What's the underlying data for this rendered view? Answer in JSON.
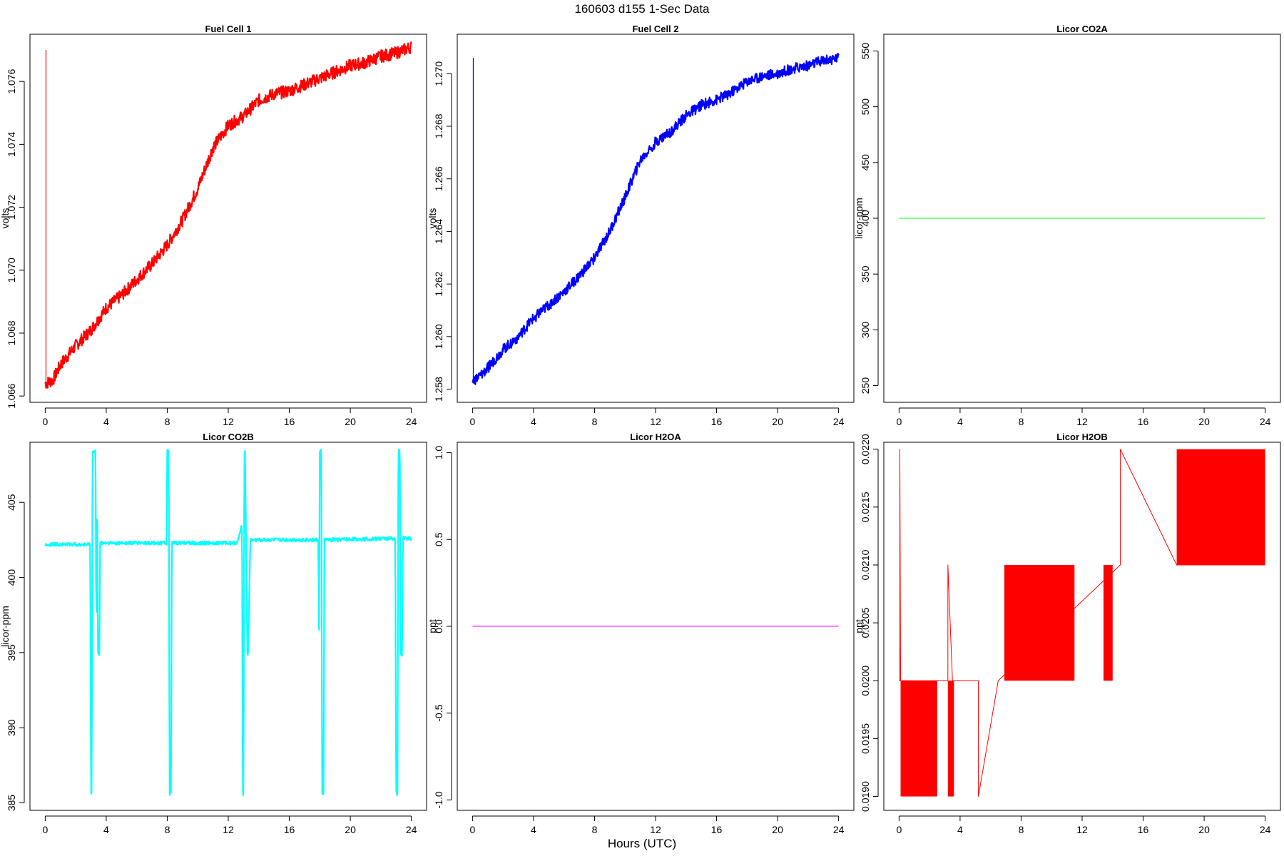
{
  "figure": {
    "title": "160603   d155   1-Sec Data",
    "xlabel": "Hours (UTC)"
  },
  "chart_data": [
    {
      "type": "line",
      "title": "Fuel Cell 1",
      "ylabel": "volts",
      "color": "#ff0000",
      "xlim": [
        -1,
        25
      ],
      "ylim": [
        1.0658,
        1.0775
      ],
      "xticks": [
        0,
        4,
        8,
        12,
        16,
        20,
        24
      ],
      "yticks": [
        1.066,
        1.068,
        1.07,
        1.072,
        1.074,
        1.076
      ],
      "ytick_labels": [
        "1.066",
        "1.068",
        "1.070",
        "1.072",
        "1.074",
        "1.076"
      ],
      "spike": {
        "x": 0.05,
        "from": 1.0664,
        "to": 1.077
      },
      "noise": 0.0002,
      "x": [
        0,
        0.5,
        1,
        2,
        3,
        4,
        5,
        6,
        7,
        8,
        9,
        10,
        11,
        12,
        13,
        14,
        15,
        16,
        17,
        18,
        19,
        20,
        21,
        22,
        23,
        24
      ],
      "y": [
        1.0664,
        1.0665,
        1.067,
        1.0676,
        1.0681,
        1.0688,
        1.0692,
        1.0697,
        1.0702,
        1.0708,
        1.0716,
        1.0726,
        1.0739,
        1.0746,
        1.0749,
        1.0754,
        1.0756,
        1.0757,
        1.0759,
        1.0761,
        1.0763,
        1.0765,
        1.0766,
        1.0768,
        1.0769,
        1.0771
      ]
    },
    {
      "type": "line",
      "title": "Fuel Cell 2",
      "ylabel": "volts",
      "color": "#0000ff",
      "xlim": [
        -1,
        25
      ],
      "ylim": [
        1.2575,
        1.2715
      ],
      "xticks": [
        0,
        4,
        8,
        12,
        16,
        20,
        24
      ],
      "yticks": [
        1.258,
        1.26,
        1.262,
        1.264,
        1.266,
        1.268,
        1.27
      ],
      "ytick_labels": [
        "1.258",
        "1.260",
        "1.262",
        "1.264",
        "1.266",
        "1.268",
        "1.270"
      ],
      "spike": {
        "x": 0.05,
        "from": 1.2583,
        "to": 1.2706
      },
      "noise": 0.0002,
      "x": [
        0,
        0.5,
        1,
        2,
        3,
        4,
        5,
        6,
        7,
        8,
        9,
        10,
        11,
        12,
        13,
        14,
        15,
        16,
        17,
        18,
        19,
        20,
        21,
        22,
        23,
        24
      ],
      "y": [
        1.2583,
        1.2585,
        1.2588,
        1.2595,
        1.26,
        1.2607,
        1.2612,
        1.2617,
        1.2623,
        1.263,
        1.264,
        1.2653,
        1.2667,
        1.2674,
        1.2678,
        1.2684,
        1.2688,
        1.269,
        1.2693,
        1.2697,
        1.2699,
        1.27,
        1.2702,
        1.2703,
        1.2705,
        1.2706
      ]
    },
    {
      "type": "line",
      "title": "Licor CO2A",
      "ylabel": "licor-ppm",
      "color": "#00ff00",
      "xlim": [
        -1,
        25
      ],
      "ylim": [
        235,
        565
      ],
      "xticks": [
        0,
        4,
        8,
        12,
        16,
        20,
        24
      ],
      "yticks": [
        250,
        300,
        350,
        400,
        450,
        500,
        550
      ],
      "ytick_labels": [
        "250",
        "300",
        "350",
        "400",
        "450",
        "500",
        "550"
      ],
      "noise": 0,
      "x": [
        0,
        24
      ],
      "y": [
        400,
        400
      ]
    },
    {
      "type": "line",
      "title": "Licor CO2B",
      "ylabel": "licor-ppm",
      "color": "#00ffff",
      "xlim": [
        -1,
        25
      ],
      "ylim": [
        384.5,
        409
      ],
      "xticks": [
        0,
        4,
        8,
        12,
        16,
        20,
        24
      ],
      "yticks": [
        385,
        390,
        395,
        400,
        405
      ],
      "ytick_labels": [
        "385",
        "390",
        "395",
        "400",
        "405"
      ],
      "noise": 0.12,
      "x": [
        0,
        2.95,
        3.0,
        3.05,
        3.1,
        3.15,
        3.3,
        3.35,
        3.4,
        3.45,
        3.55,
        3.6,
        3.7,
        7.95,
        8.0,
        8.1,
        8.15,
        8.25,
        8.3,
        12.6,
        12.9,
        12.95,
        13.0,
        13.05,
        13.1,
        13.25,
        13.3,
        13.45,
        13.5,
        17.9,
        17.95,
        18.0,
        18.1,
        18.15,
        18.25,
        18.3,
        22.95,
        23.0,
        23.1,
        23.15,
        23.25,
        23.3,
        23.4,
        23.45,
        23.6,
        24
      ],
      "y": [
        402.2,
        402.2,
        385.6,
        385.6,
        408.4,
        408.4,
        408.4,
        395.5,
        406.8,
        394.9,
        394.9,
        402.3,
        402.3,
        402.3,
        408.4,
        408.4,
        385.6,
        385.6,
        402.3,
        402.3,
        403.5,
        385.6,
        385.6,
        408.4,
        408.4,
        394.9,
        394.9,
        402.5,
        402.5,
        402.5,
        396.0,
        408.4,
        408.4,
        385.6,
        385.6,
        402.5,
        402.6,
        385.6,
        385.6,
        408.4,
        408.4,
        394.9,
        394.9,
        402.7,
        402.6,
        402.6
      ]
    },
    {
      "type": "line",
      "title": "Licor H2OA",
      "ylabel": "ppt",
      "color": "#ff00ff",
      "xlim": [
        -1,
        25
      ],
      "ylim": [
        -1.06,
        1.06
      ],
      "xticks": [
        0,
        4,
        8,
        12,
        16,
        20,
        24
      ],
      "yticks": [
        -1.0,
        -0.5,
        0.0,
        0.5,
        1.0
      ],
      "ytick_labels": [
        "-1.0",
        "-0.5",
        "0.0",
        "0.5",
        "1.0"
      ],
      "noise": 0,
      "x": [
        0,
        24
      ],
      "y": [
        0,
        0
      ]
    },
    {
      "type": "line",
      "title": "Licor H2OB",
      "ylabel": "ppt",
      "color": "#ff0000",
      "xlim": [
        -1,
        25
      ],
      "ylim": [
        0.01888,
        0.02206
      ],
      "xticks": [
        0,
        4,
        8,
        12,
        16,
        20,
        24
      ],
      "yticks": [
        0.019,
        0.0195,
        0.02,
        0.0205,
        0.021,
        0.0215,
        0.022
      ],
      "ytick_labels": [
        "0.0190",
        "0.0195",
        "0.0200",
        "0.0205",
        "0.0210",
        "0.0215",
        "0.0220"
      ],
      "noise": 0,
      "x": [
        0,
        0.05,
        0.05,
        0.1,
        2.5,
        2.5,
        3.2,
        3.2,
        3.5,
        3.5,
        5.2,
        5.2,
        6.5,
        6.5,
        14.5,
        14.5,
        18.2,
        18.2,
        24
      ],
      "y": [
        0.02,
        0.02,
        0.022,
        0.02,
        0.02,
        0.02,
        0.02,
        0.021,
        0.02,
        0.02,
        0.02,
        0.019,
        0.02,
        0.02,
        0.021,
        0.022,
        0.021,
        0.021,
        0.021
      ],
      "bands": [
        {
          "x0": 0.1,
          "x1": 2.5,
          "lo": 0.019,
          "hi": 0.02
        },
        {
          "x0": 3.2,
          "x1": 3.6,
          "lo": 0.019,
          "hi": 0.02
        },
        {
          "x0": 6.9,
          "x1": 11.5,
          "lo": 0.02,
          "hi": 0.021
        },
        {
          "x0": 13.4,
          "x1": 14.0,
          "lo": 0.02,
          "hi": 0.021
        },
        {
          "x0": 18.2,
          "x1": 24.0,
          "lo": 0.021,
          "hi": 0.022
        }
      ]
    }
  ]
}
